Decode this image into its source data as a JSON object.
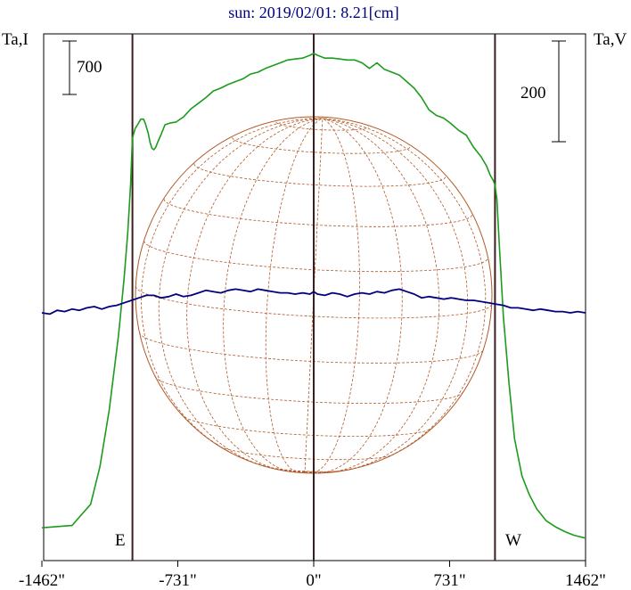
{
  "chart_data": {
    "type": "line",
    "title": "sun: 2019/02/01: 8.21[cm]",
    "left_axis_label": "Ta,I",
    "right_axis_label": "Ta,V",
    "left_scale_bar_label": "700",
    "right_scale_bar_label": "200",
    "east_label": "E",
    "west_label": "W",
    "x_tick_labels": [
      "-1462\"",
      "-731\"",
      "0\"",
      "731\"",
      "1462\""
    ],
    "x_ticks": [
      -1462,
      -731,
      0,
      731,
      1462
    ],
    "xlim": [
      -1462,
      1462
    ],
    "disk_limb_arcsec": [
      -975,
      975
    ],
    "series": [
      {
        "axis": "Ta,I",
        "color": "#1c9c1c",
        "x": [
          -1462,
          -1300,
          -1200,
          -1150,
          -1100,
          -1050,
          -1020,
          -1000,
          -985,
          -975,
          -960,
          -945,
          -930,
          -915,
          -905,
          -890,
          -880,
          -870,
          -860,
          -850,
          -840,
          -820,
          -800,
          -770,
          -740,
          -700,
          -660,
          -620,
          -580,
          -540,
          -500,
          -460,
          -420,
          -380,
          -340,
          -300,
          -260,
          -220,
          -180,
          -140,
          -100,
          -60,
          -20,
          0,
          20,
          60,
          100,
          140,
          180,
          220,
          260,
          300,
          340,
          380,
          420,
          460,
          500,
          540,
          580,
          620,
          660,
          700,
          740,
          780,
          820,
          860,
          900,
          930,
          950,
          965,
          975,
          985,
          1000,
          1020,
          1050,
          1080,
          1120,
          1160,
          1200,
          1250,
          1300,
          1350,
          1400,
          1462
        ],
        "y": [
          30,
          35,
          80,
          160,
          280,
          440,
          560,
          660,
          760,
          860,
          880,
          890,
          900,
          900,
          890,
          870,
          850,
          838,
          835,
          840,
          850,
          868,
          888,
          892,
          894,
          905,
          922,
          934,
          946,
          960,
          966,
          974,
          980,
          986,
          996,
          1000,
          1008,
          1014,
          1020,
          1026,
          1028,
          1030,
          1036,
          1040,
          1036,
          1030,
          1030,
          1028,
          1026,
          1026,
          1020,
          1008,
          1020,
          1006,
          1000,
          994,
          980,
          966,
          946,
          920,
          908,
          902,
          890,
          876,
          866,
          840,
          820,
          800,
          780,
          770,
          760,
          730,
          620,
          480,
          340,
          220,
          140,
          100,
          70,
          45,
          32,
          22,
          14,
          8
        ]
      },
      {
        "axis": "Ta,V",
        "color": "#000080",
        "x": [
          -1462,
          -1420,
          -1380,
          -1340,
          -1300,
          -1260,
          -1220,
          -1180,
          -1140,
          -1100,
          -1060,
          -1020,
          -980,
          -940,
          -900,
          -860,
          -820,
          -780,
          -740,
          -700,
          -660,
          -620,
          -580,
          -540,
          -500,
          -460,
          -420,
          -380,
          -340,
          -300,
          -260,
          -220,
          -180,
          -140,
          -100,
          -60,
          -20,
          0,
          20,
          60,
          100,
          140,
          180,
          220,
          260,
          300,
          340,
          380,
          420,
          460,
          500,
          540,
          580,
          620,
          660,
          700,
          740,
          780,
          820,
          860,
          900,
          940,
          980,
          1020,
          1060,
          1100,
          1140,
          1180,
          1220,
          1260,
          1300,
          1340,
          1380,
          1420,
          1462
        ],
        "y": [
          0,
          -1,
          2,
          1,
          3,
          2,
          4,
          5,
          3,
          5,
          6,
          8,
          10,
          12,
          14,
          14,
          12,
          13,
          15,
          13,
          14,
          16,
          18,
          17,
          16,
          18,
          19,
          18,
          17,
          19,
          18,
          17,
          16,
          16,
          15,
          16,
          15,
          17,
          15,
          14,
          16,
          15,
          13,
          15,
          16,
          15,
          17,
          16,
          18,
          19,
          17,
          15,
          12,
          13,
          12,
          11,
          12,
          11,
          10,
          10,
          9,
          8,
          7,
          6,
          4,
          4,
          3,
          2,
          3,
          2,
          1,
          1,
          0,
          1,
          0
        ]
      }
    ]
  },
  "colors": {
    "title": "#000080",
    "disk": "#b05a28",
    "limb_lines": "#3c1e1e",
    "intensity": "#1c9c1c",
    "polarization": "#000080"
  }
}
